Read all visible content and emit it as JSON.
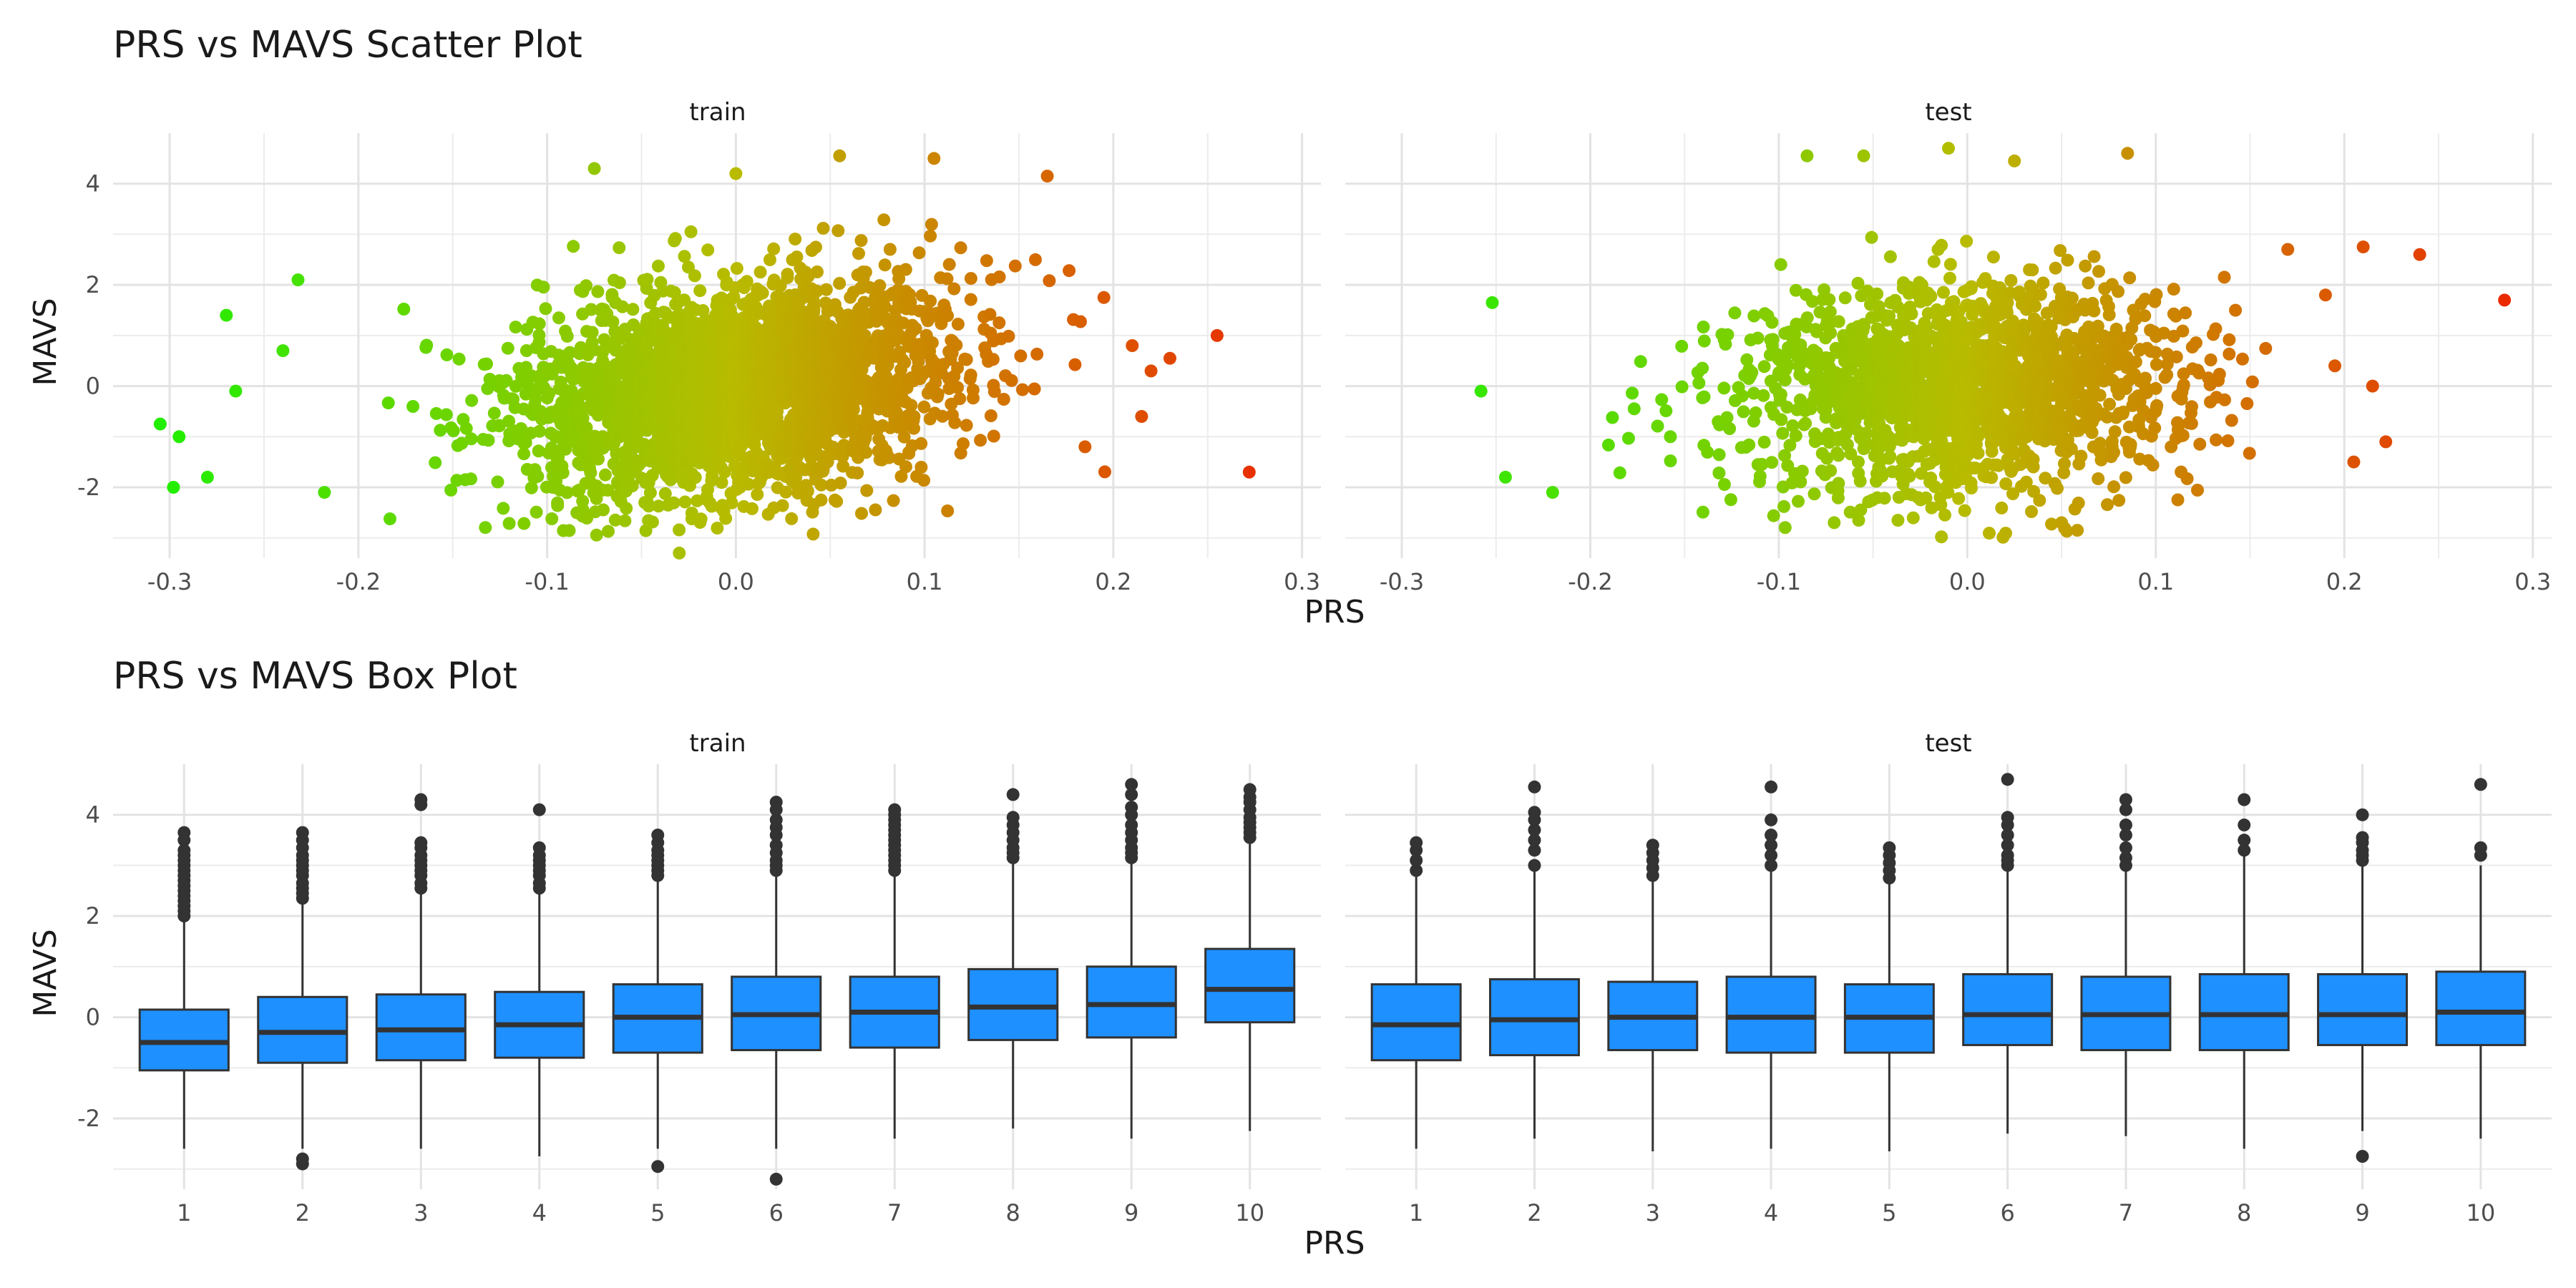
{
  "chart_data": [
    {
      "type": "scatter",
      "title": "PRS vs MAVS Scatter Plot",
      "xlabel": "PRS",
      "ylabel": "MAVS",
      "facets": [
        "train",
        "test"
      ],
      "xlim": [
        -0.33,
        0.31
      ],
      "ylim": [
        -3.4,
        5.0
      ],
      "x_ticks": [
        -0.3,
        -0.2,
        -0.1,
        0.0,
        0.1,
        0.2,
        0.3
      ],
      "x_tick_labels": [
        "-0.3",
        "-0.2",
        "-0.1",
        "0.0",
        "0.1",
        "0.2",
        "0.3"
      ],
      "y_ticks": [
        -2,
        0,
        2,
        4
      ],
      "y_tick_labels": [
        "-2",
        "0",
        "2",
        "4"
      ],
      "grid": true,
      "color_gradient": {
        "low": "#22ee00",
        "mid": "#b8bb00",
        "high": "#ee2200",
        "by": "PRS"
      },
      "train": {
        "trend": {
          "intercept": 0.0,
          "slope": 4.5
        },
        "sd_x": 0.06,
        "sd_y": 1.05,
        "outliers": [
          [
            -0.305,
            -0.75
          ],
          [
            -0.298,
            -2.0
          ],
          [
            -0.295,
            -1.0
          ],
          [
            -0.28,
            -1.8
          ],
          [
            -0.27,
            1.4
          ],
          [
            -0.265,
            -0.1
          ],
          [
            -0.24,
            0.7
          ],
          [
            -0.232,
            2.1
          ],
          [
            -0.218,
            -2.1
          ],
          [
            -0.075,
            4.3
          ],
          [
            -0.03,
            -3.3
          ],
          [
            0.0,
            4.2
          ],
          [
            0.055,
            4.55
          ],
          [
            0.105,
            4.5
          ],
          [
            0.165,
            4.15
          ],
          [
            0.195,
            1.75
          ],
          [
            0.21,
            0.8
          ],
          [
            0.215,
            -0.6
          ],
          [
            0.22,
            0.3
          ],
          [
            0.23,
            0.55
          ],
          [
            0.255,
            1.0
          ],
          [
            0.272,
            -1.7
          ],
          [
            0.185,
            -1.2
          ]
        ]
      },
      "test": {
        "trend": {
          "intercept": 0.0,
          "slope": 1.2
        },
        "sd_x": 0.06,
        "sd_y": 1.0,
        "outliers": [
          [
            -0.258,
            -0.1
          ],
          [
            -0.252,
            1.65
          ],
          [
            -0.245,
            -1.8
          ],
          [
            -0.22,
            -2.1
          ],
          [
            -0.085,
            4.55
          ],
          [
            -0.055,
            4.55
          ],
          [
            -0.01,
            4.7
          ],
          [
            0.025,
            4.45
          ],
          [
            0.085,
            4.6
          ],
          [
            0.05,
            -2.7
          ],
          [
            0.17,
            2.7
          ],
          [
            0.19,
            1.8
          ],
          [
            0.195,
            0.4
          ],
          [
            0.205,
            -1.5
          ],
          [
            0.21,
            2.75
          ],
          [
            0.215,
            0.0
          ],
          [
            0.222,
            -1.1
          ],
          [
            0.24,
            2.6
          ],
          [
            0.285,
            1.7
          ]
        ]
      }
    },
    {
      "type": "box",
      "title": "PRS vs MAVS Box Plot",
      "xlabel": "PRS",
      "ylabel": "MAVS",
      "facets": [
        "train",
        "test"
      ],
      "categories": [
        "1",
        "2",
        "3",
        "4",
        "5",
        "6",
        "7",
        "8",
        "9",
        "10"
      ],
      "ylim": [
        -3.4,
        5.0
      ],
      "y_ticks": [
        -2,
        0,
        2,
        4
      ],
      "y_tick_labels": [
        "-2",
        "0",
        "2",
        "4"
      ],
      "fill_color": "#1e90ff",
      "grid": true,
      "train": {
        "min": [
          -2.6,
          -2.6,
          -2.6,
          -2.75,
          -2.6,
          -2.6,
          -2.4,
          -2.2,
          -2.4,
          -2.25
        ],
        "q1": [
          -1.05,
          -0.9,
          -0.85,
          -0.8,
          -0.7,
          -0.65,
          -0.6,
          -0.45,
          -0.4,
          -0.1
        ],
        "median": [
          -0.5,
          -0.3,
          -0.25,
          -0.15,
          0.0,
          0.05,
          0.1,
          0.2,
          0.25,
          0.55
        ],
        "q3": [
          0.15,
          0.4,
          0.45,
          0.5,
          0.65,
          0.8,
          0.8,
          0.95,
          1.0,
          1.35
        ],
        "max": [
          1.9,
          2.3,
          2.5,
          2.5,
          2.75,
          2.85,
          2.85,
          3.1,
          3.1,
          3.5
        ],
        "outliers": [
          [
            2.0,
            2.1,
            2.2,
            2.3,
            2.4,
            2.5,
            2.6,
            2.7,
            2.8,
            2.9,
            3.0,
            3.1,
            3.2,
            3.3,
            3.5,
            3.65
          ],
          [
            2.35,
            2.45,
            2.55,
            2.65,
            2.8,
            2.9,
            3.0,
            3.1,
            3.2,
            3.35,
            3.5,
            3.65,
            -2.8,
            -2.9
          ],
          [
            2.55,
            2.65,
            2.8,
            2.9,
            3.0,
            3.1,
            3.2,
            3.35,
            3.45,
            4.2,
            4.3
          ],
          [
            2.55,
            2.65,
            2.8,
            2.9,
            3.0,
            3.1,
            3.2,
            3.35,
            4.1
          ],
          [
            2.8,
            2.9,
            3.0,
            3.1,
            3.2,
            3.3,
            3.45,
            3.6,
            -2.95
          ],
          [
            2.9,
            3.0,
            3.1,
            3.25,
            3.4,
            3.6,
            3.75,
            3.9,
            4.1,
            4.25,
            -3.2
          ],
          [
            2.9,
            3.0,
            3.1,
            3.2,
            3.3,
            3.4,
            3.5,
            3.6,
            3.7,
            3.8,
            3.9,
            4.0,
            4.1
          ],
          [
            3.15,
            3.25,
            3.35,
            3.5,
            3.65,
            3.8,
            3.95,
            4.4
          ],
          [
            3.15,
            3.25,
            3.35,
            3.5,
            3.65,
            3.8,
            4.0,
            4.15,
            4.4,
            4.6
          ],
          [
            3.55,
            3.65,
            3.75,
            3.85,
            3.95,
            4.1,
            4.25,
            4.35,
            4.5
          ]
        ]
      },
      "test": {
        "min": [
          -2.6,
          -2.4,
          -2.65,
          -2.6,
          -2.65,
          -2.3,
          -2.35,
          -2.6,
          -2.25,
          -2.4
        ],
        "q1": [
          -0.85,
          -0.75,
          -0.65,
          -0.7,
          -0.7,
          -0.55,
          -0.65,
          -0.65,
          -0.55,
          -0.55
        ],
        "median": [
          -0.15,
          -0.05,
          0.0,
          0.0,
          0.0,
          0.05,
          0.05,
          0.05,
          0.05,
          0.1
        ],
        "q3": [
          0.65,
          0.75,
          0.7,
          0.8,
          0.65,
          0.85,
          0.8,
          0.85,
          0.85,
          0.9
        ],
        "max": [
          2.8,
          2.95,
          2.75,
          2.95,
          2.7,
          2.95,
          2.95,
          3.2,
          3.0,
          3.0
        ],
        "outliers": [
          [
            2.9,
            3.1,
            3.3,
            3.45
          ],
          [
            3.0,
            3.3,
            3.5,
            3.7,
            3.9,
            4.05,
            4.55
          ],
          [
            2.8,
            2.95,
            3.1,
            3.25,
            3.4
          ],
          [
            3.0,
            3.2,
            3.4,
            3.6,
            3.9,
            4.55
          ],
          [
            2.75,
            2.9,
            3.05,
            3.2,
            3.35
          ],
          [
            3.0,
            3.1,
            3.2,
            3.4,
            3.6,
            3.8,
            3.95,
            4.7
          ],
          [
            3.0,
            3.15,
            3.35,
            3.6,
            3.8,
            4.1,
            4.3
          ],
          [
            3.3,
            3.5,
            3.8,
            4.3
          ],
          [
            3.1,
            3.2,
            3.3,
            3.45,
            3.55,
            4.0,
            -2.75
          ],
          [
            3.2,
            3.35,
            4.6
          ]
        ]
      }
    }
  ]
}
